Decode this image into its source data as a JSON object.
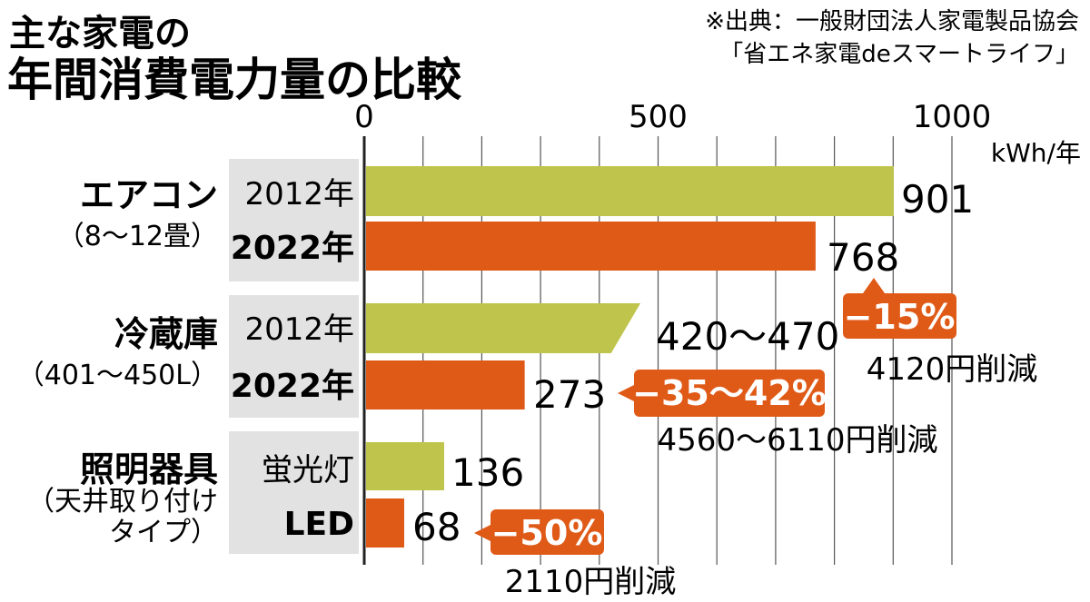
{
  "title_line1": "主な家電の",
  "title_line2": "年間消費電力量の比較",
  "source_line1": "※出典：一般財団法人家電製品協会",
  "source_line2": "「省エネ家電deスマートライフ」",
  "colors": {
    "old": "#bfc54c",
    "new": "#e05a17",
    "callout": "#e05a17",
    "label_bg": "#e2e2e2",
    "grid": "#555555"
  },
  "chart_data": {
    "type": "bar",
    "orientation": "horizontal",
    "unit": "kWh/年",
    "xlim": [
      0,
      1000
    ],
    "grid": true,
    "ticks": [
      {
        "value": 0,
        "label": "0"
      },
      {
        "value": 500,
        "label": "500"
      },
      {
        "value": 1000,
        "label": "1000"
      }
    ],
    "gridlines": [
      0,
      100,
      200,
      300,
      400,
      500,
      600,
      700,
      800,
      900,
      1000
    ],
    "groups": [
      {
        "name": "エアコン",
        "sub": "（8～12畳）",
        "bars": [
          {
            "label": "2012年",
            "kind": "old",
            "value": 901,
            "value_label": "901"
          },
          {
            "label": "2022年",
            "kind": "new",
            "value": 768,
            "value_label": "768"
          }
        ],
        "change": "−15%",
        "saving": "4120円削減"
      },
      {
        "name": "冷蔵庫",
        "sub": "（401～450L）",
        "bars": [
          {
            "label": "2012年",
            "kind": "old",
            "value": 420,
            "value_max": 470,
            "value_label": "420～470"
          },
          {
            "label": "2022年",
            "kind": "new",
            "value": 273,
            "value_label": "273"
          }
        ],
        "change": "−35～42%",
        "saving": "4560～6110円削減"
      },
      {
        "name": "照明器具",
        "sub": "（天井取り付け",
        "sub2": "タイプ）",
        "bars": [
          {
            "label": "蛍光灯",
            "kind": "old",
            "value": 136,
            "value_label": "136"
          },
          {
            "label": "LED",
            "kind": "new",
            "value": 68,
            "value_label": "68"
          }
        ],
        "change": "−50%",
        "saving": "2110円削減"
      }
    ]
  }
}
